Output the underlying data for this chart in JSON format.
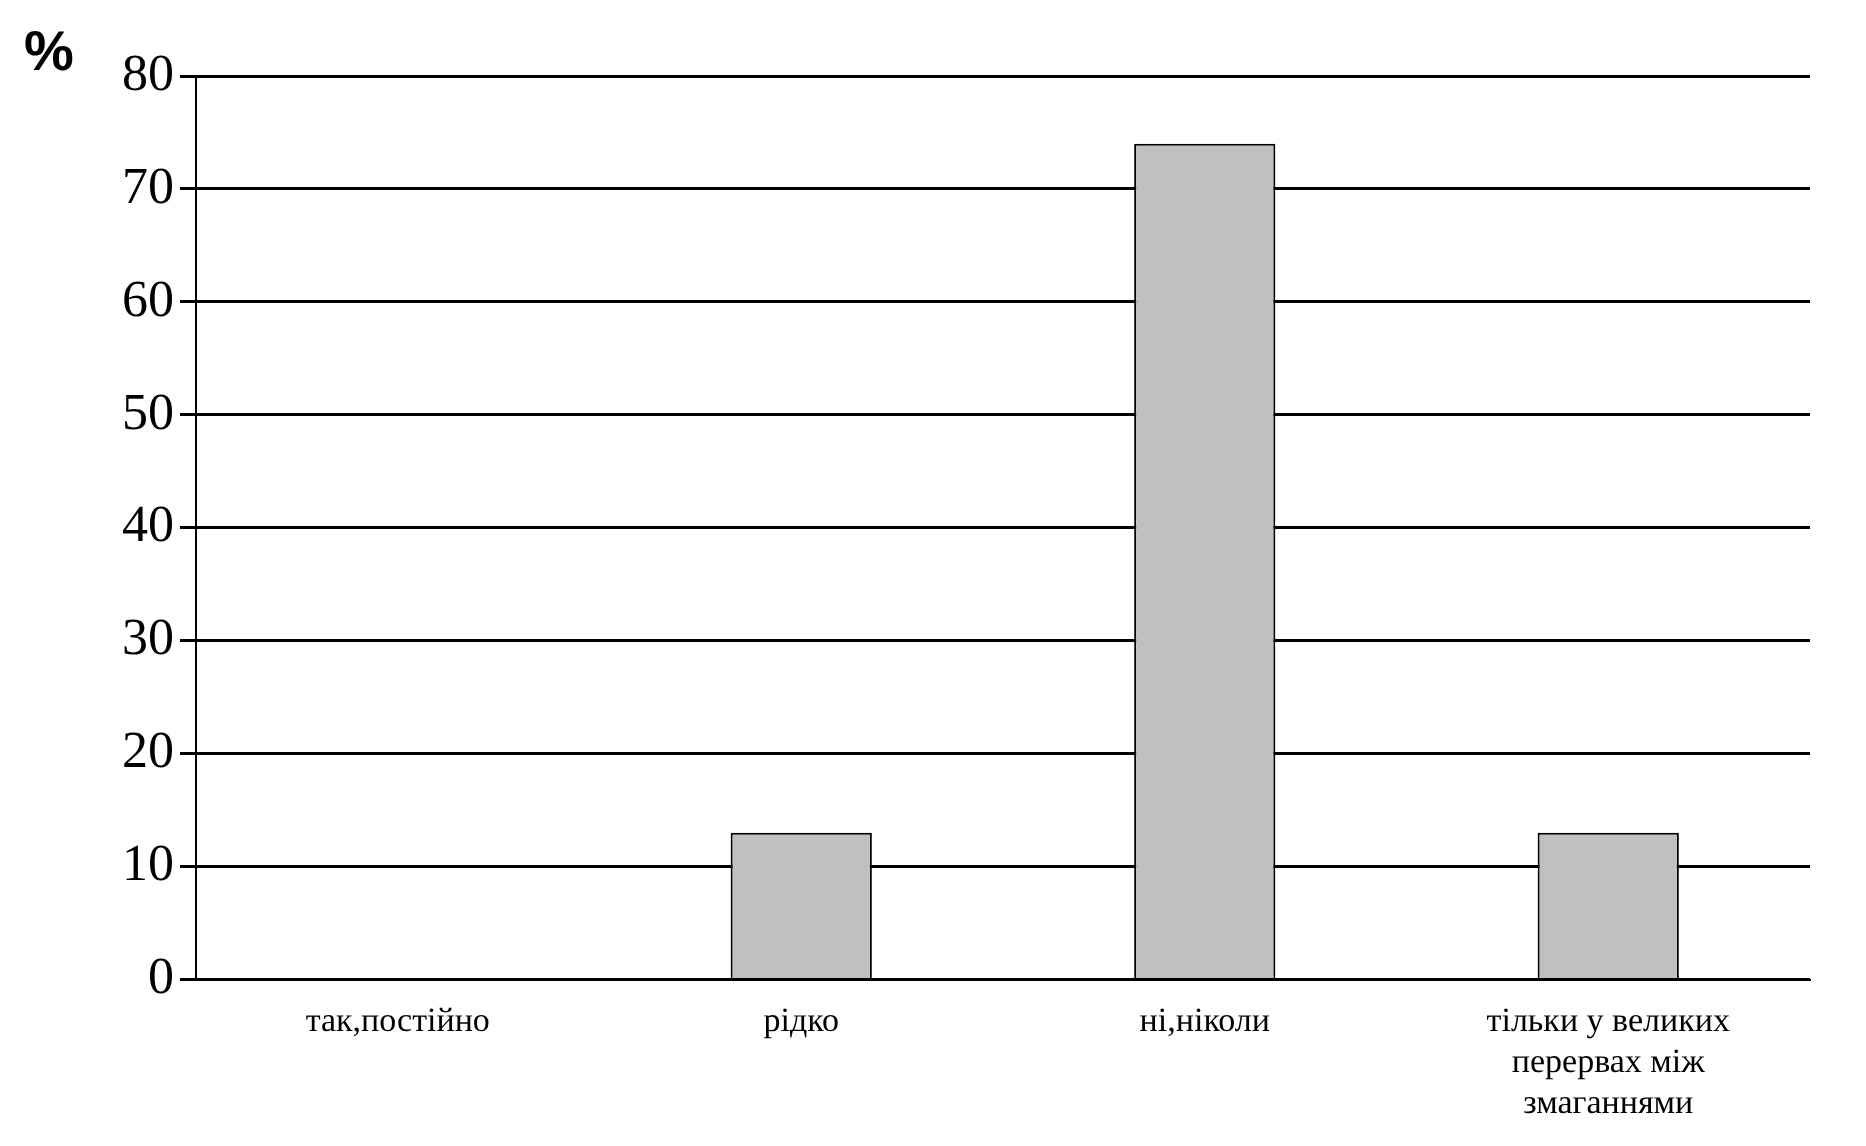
{
  "chart_data": {
    "type": "bar",
    "ylabel": "%",
    "categories": [
      "так,постійно",
      "рідко",
      "ні,ніколи",
      "тільки у великих перервах між змаганнями"
    ],
    "values": [
      0,
      13,
      74,
      13
    ],
    "color": "#c0c0c0",
    "ylim": [
      0,
      80
    ],
    "yticks": [
      0,
      10,
      20,
      30,
      40,
      50,
      60,
      70,
      80
    ],
    "grid": "y"
  }
}
